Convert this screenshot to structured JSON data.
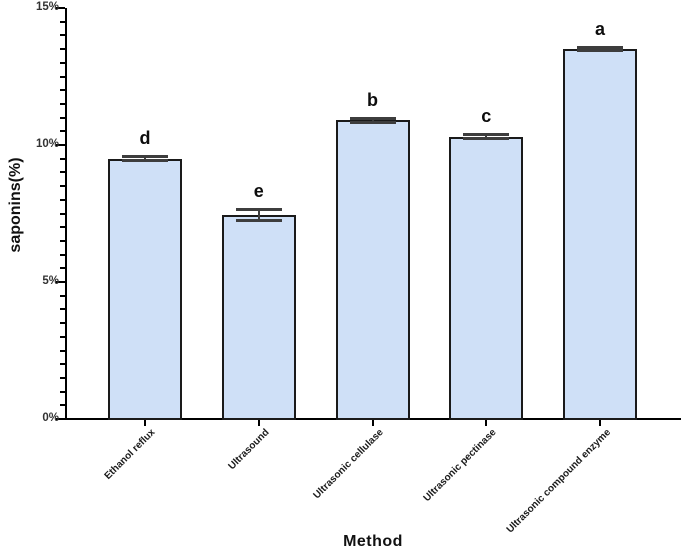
{
  "chart_data": {
    "type": "bar",
    "title": "",
    "xlabel": "Method",
    "ylabel": "saponins(%)",
    "categories": [
      "Ethanol reflux",
      "Ultrasound",
      "Ultrasonic cellulase",
      "Ultrasonic pectinase",
      "Ultrasonic compound enzyme"
    ],
    "series": [
      {
        "name": "saponins",
        "values": [
          9.5,
          7.45,
          10.9,
          10.3,
          13.5
        ]
      }
    ],
    "error_bars": [
      0.12,
      0.25,
      0.12,
      0.12,
      0.1
    ],
    "significance_letters": [
      "d",
      "e",
      "b",
      "c",
      "a"
    ],
    "ylim": [
      0,
      15
    ],
    "ytick_values": [
      0,
      5,
      10,
      15
    ],
    "ytick_labels": [
      "0%",
      "5%",
      "10%",
      "15%"
    ],
    "minor_tick_step": 0.5,
    "grid": "off",
    "legend": "none",
    "xtick_rotation_deg": 45,
    "colors": {
      "bar_fill": "#cfe0f7",
      "bar_border": "#1a1a1a",
      "error_bar": "#3d3d3d",
      "axis": "#000000",
      "tick_label": "#333333",
      "text": "#111111"
    }
  }
}
